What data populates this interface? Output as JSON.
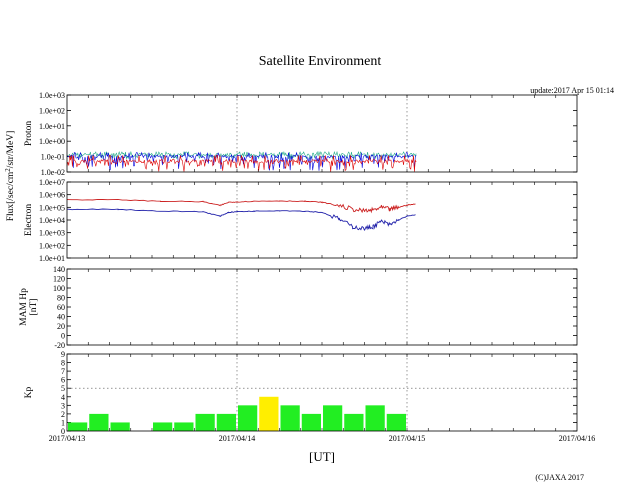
{
  "header": {
    "title": "Satellite Environment",
    "update": "update:2017 Apr 15 01:14",
    "credit": "(C)JAXA 2017"
  },
  "colors": {
    "proton_high": "#22aa88",
    "proton_mid": "#0000dd",
    "proton_low": "#dd0000",
    "electron_high": "#cc2222",
    "electron_low": "#2222aa",
    "kp_normal": "#22ee22",
    "kp_active": "#ffee00"
  },
  "chart_data": [
    {
      "type": "line",
      "panel": "proton",
      "ylabel": [
        "Proton"
      ],
      "yscale": "log",
      "ylim": [
        0.01,
        1000
      ],
      "yticks": [
        "1.0e+03",
        "1.0e+02",
        "1.0e+01",
        "1.0e+00",
        "1.0e-01",
        "1.0e-02"
      ],
      "x_range": [
        "2017/04/13",
        "2017/04/16"
      ],
      "data_end": "2017/04/15 01:14",
      "series": [
        {
          "color_key": "proton_high",
          "typical": 0.13,
          "min": 0.07,
          "max": 0.2
        },
        {
          "color_key": "proton_mid",
          "typical": 0.1,
          "min": 0.012,
          "max": 0.18
        },
        {
          "color_key": "proton_low",
          "typical": 0.05,
          "min": 0.01,
          "max": 0.12
        }
      ]
    },
    {
      "type": "line",
      "panel": "electron",
      "ylabel": [
        "Electron"
      ],
      "yscale": "log",
      "ylim": [
        10,
        10000000
      ],
      "yticks": [
        "1.0e+07",
        "1.0e+06",
        "1.0e+05",
        "1.0e+04",
        "1.0e+03",
        "1.0e+02",
        "1.0e+01"
      ],
      "series": [
        {
          "color_key": "electron_high",
          "x_days": [
            0,
            0.3,
            0.55,
            0.8,
            0.9,
            0.95,
            1.0,
            1.1,
            1.25,
            1.4,
            1.5,
            1.6,
            1.68,
            1.75,
            1.8,
            1.85,
            1.9,
            1.95,
            2.0,
            2.05
          ],
          "values": [
            400000,
            400000,
            300000,
            280000,
            140000,
            250000,
            270000,
            300000,
            320000,
            300000,
            250000,
            140000,
            70000,
            50000,
            60000,
            100000,
            70000,
            100000,
            150000,
            180000
          ]
        },
        {
          "color_key": "electron_low",
          "x_days": [
            0,
            0.3,
            0.55,
            0.8,
            0.9,
            0.95,
            1.0,
            1.1,
            1.25,
            1.4,
            1.5,
            1.6,
            1.68,
            1.75,
            1.8,
            1.85,
            1.9,
            1.95,
            2.0,
            2.05
          ],
          "values": [
            70000,
            70000,
            50000,
            45000,
            20000,
            40000,
            45000,
            50000,
            55000,
            50000,
            40000,
            12000,
            3000,
            2000,
            3000,
            8000,
            4000,
            10000,
            20000,
            25000
          ]
        }
      ]
    },
    {
      "type": "line",
      "panel": "mam",
      "ylabel": [
        "MAM Hp",
        "[nT]"
      ],
      "ylim": [
        -20,
        140
      ],
      "yticks": [
        "140",
        "120",
        "100",
        "80",
        "60",
        "40",
        "20",
        "0",
        "-20"
      ],
      "series": []
    },
    {
      "type": "bar",
      "panel": "kp",
      "ylabel": [
        "Kp"
      ],
      "ylim": [
        0,
        9
      ],
      "yticks": [
        "9",
        "8",
        "7",
        "6",
        "5",
        "4",
        "3",
        "2",
        "1",
        "0"
      ],
      "bar_hours": 3,
      "values": [
        1,
        2,
        1,
        0,
        1,
        1,
        2,
        2,
        3,
        4,
        3,
        2,
        3,
        2,
        3,
        2
      ],
      "active_threshold": 4
    }
  ],
  "shared_ylabel_prefix": "Flux[/sec/cm",
  "shared_ylabel_sup": "2",
  "shared_ylabel_suffix": "/str/MeV]",
  "x_axis": {
    "ticks": [
      "2017/04/13",
      "2017/04/14",
      "2017/04/15",
      "2017/04/16"
    ],
    "label": "[UT]"
  }
}
